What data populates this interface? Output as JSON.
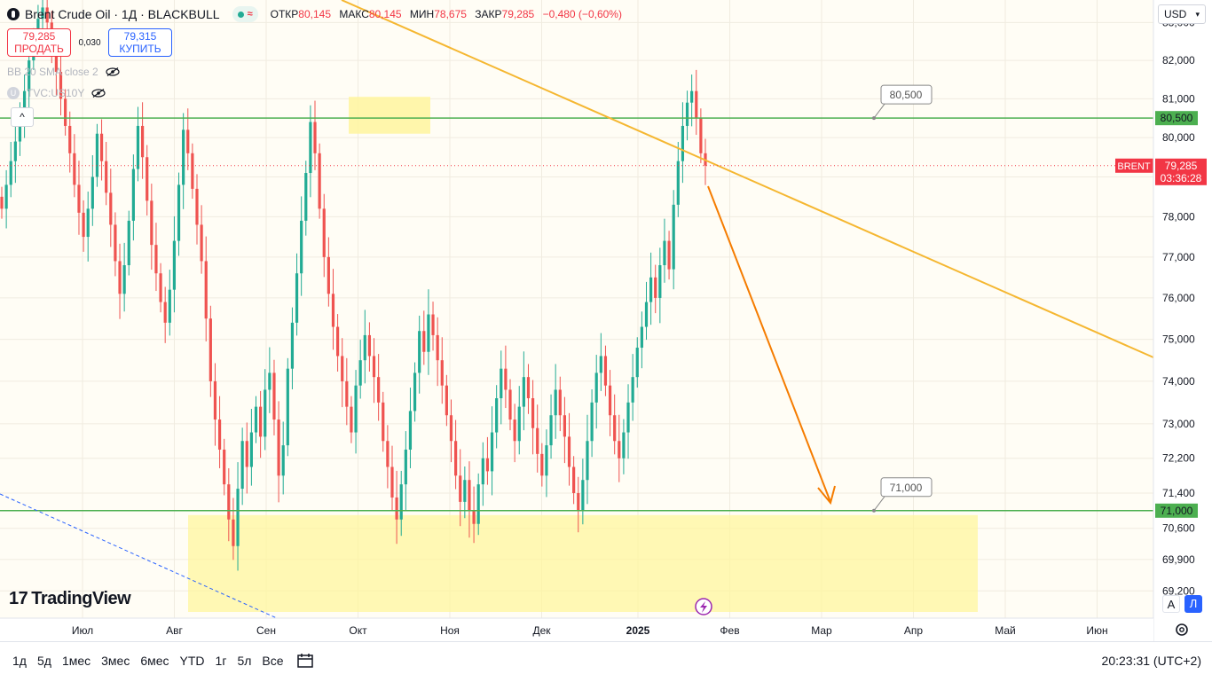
{
  "header": {
    "title": "Brent Crude Oil · 1Д · BLACKBULL",
    "ohlc": [
      {
        "label": "ОТКР",
        "value": "80,145"
      },
      {
        "label": "МАКС",
        "value": "80,145"
      },
      {
        "label": "МИН",
        "value": "78,675"
      },
      {
        "label": "ЗАКР",
        "value": "79,285"
      },
      {
        "label": "",
        "value": "−0,480 (−0,60%)"
      }
    ]
  },
  "trade": {
    "sell_price": "79,285",
    "sell_label": "ПРОДАТЬ",
    "spread": "0,030",
    "buy_price": "79,315",
    "buy_label": "КУПИТЬ"
  },
  "indicators": [
    {
      "label": "BB 20 SMA close 2"
    },
    {
      "label": "TVC:US10Y"
    }
  ],
  "collapse_label": "^",
  "branding": {
    "logo_text": "TradingView",
    "logo_mark": "17"
  },
  "currency": {
    "label": "USD",
    "icon": "chevron-down-icon"
  },
  "bottom_bar": {
    "ranges": [
      "1д",
      "5д",
      "1мес",
      "3мес",
      "6мес",
      "YTD",
      "1г",
      "5л",
      "Все"
    ],
    "clock": "20:23:31 (UTC+2)"
  },
  "scale_buttons": {
    "auto": "A",
    "log": "Л"
  },
  "colors": {
    "up": "#22ab94",
    "down": "#ef5350",
    "trend": "#f5b731",
    "arrow": "#f57c00",
    "level": "#4caf50",
    "zone": "#fff59d",
    "price_tag": "#f23645"
  },
  "chart_data": {
    "type": "candlestick",
    "symbol": "BRENT",
    "timeframe": "1Д",
    "x_axis_labels": [
      "Июл",
      "Авг",
      "Сен",
      "Окт",
      "Ноя",
      "Дек",
      "2025",
      "Фев",
      "Мар",
      "Апр",
      "Май",
      "Июн"
    ],
    "y_axis_ticks": [
      "83,000",
      "82,000",
      "81,000",
      "80,000",
      "79,000",
      "78,000",
      "77,000",
      "76,000",
      "75,000",
      "74,000",
      "73,000",
      "72,200",
      "71,400",
      "70,600",
      "69,900",
      "69,200"
    ],
    "y_range": [
      68.6,
      83.6
    ],
    "scale": "log",
    "current_price": {
      "label": "BRENT",
      "value": "79,285",
      "countdown": "03:36:28"
    },
    "levels": [
      {
        "value": 80.5,
        "label": "80,500"
      },
      {
        "value": 71.0,
        "label": "71,000"
      }
    ],
    "candles_close": [
      78.2,
      78.8,
      79.4,
      79.9,
      80.6,
      81.2,
      82.0,
      82.6,
      83.1,
      83.4,
      83.0,
      82.3,
      81.7,
      81.0,
      80.3,
      79.6,
      78.8,
      78.1,
      77.5,
      78.2,
      79.0,
      80.1,
      79.4,
      78.6,
      77.8,
      76.9,
      76.1,
      76.8,
      77.9,
      79.2,
      80.3,
      79.5,
      78.4,
      77.3,
      76.6,
      75.9,
      75.4,
      76.2,
      77.4,
      78.8,
      80.2,
      79.6,
      78.7,
      77.8,
      76.9,
      75.5,
      74.0,
      73.1,
      72.4,
      71.6,
      70.8,
      70.2,
      71.5,
      72.6,
      72.0,
      72.8,
      73.4,
      72.7,
      73.8,
      74.2,
      73.1,
      71.8,
      72.5,
      74.3,
      75.4,
      76.6,
      77.9,
      79.1,
      80.4,
      79.6,
      78.2,
      77.0,
      76.1,
      75.3,
      74.6,
      74.0,
      73.4,
      72.8,
      73.9,
      74.5,
      75.1,
      74.6,
      74.1,
      73.5,
      72.6,
      72.0,
      71.3,
      70.8,
      71.6,
      72.4,
      73.3,
      74.2,
      75.2,
      74.7,
      75.6,
      75.1,
      74.5,
      73.9,
      73.2,
      72.6,
      71.8,
      71.2,
      71.7,
      71.0,
      70.7,
      71.6,
      72.2,
      71.9,
      72.8,
      73.6,
      74.3,
      73.8,
      73.1,
      72.6,
      73.4,
      74.1,
      73.6,
      72.9,
      72.3,
      71.8,
      72.5,
      73.2,
      73.8,
      73.2,
      72.7,
      72.0,
      71.4,
      71.0,
      71.7,
      72.6,
      73.5,
      74.2,
      74.6,
      73.9,
      73.2,
      72.6,
      72.2,
      72.8,
      73.5,
      74.1,
      74.8,
      75.3,
      75.9,
      76.5,
      76.0,
      76.8,
      77.4,
      76.7,
      78.3,
      79.4,
      80.3,
      80.9,
      81.2,
      80.5,
      79.6,
      79.285
    ],
    "annotations": [
      {
        "type": "trendline",
        "description": "descending resistance"
      },
      {
        "type": "arrow",
        "description": "forecast down toward 71,000"
      },
      {
        "type": "rectangle",
        "description": "support zone near 70,8"
      },
      {
        "type": "rectangle",
        "description": "resistance area near 80,5"
      }
    ]
  }
}
